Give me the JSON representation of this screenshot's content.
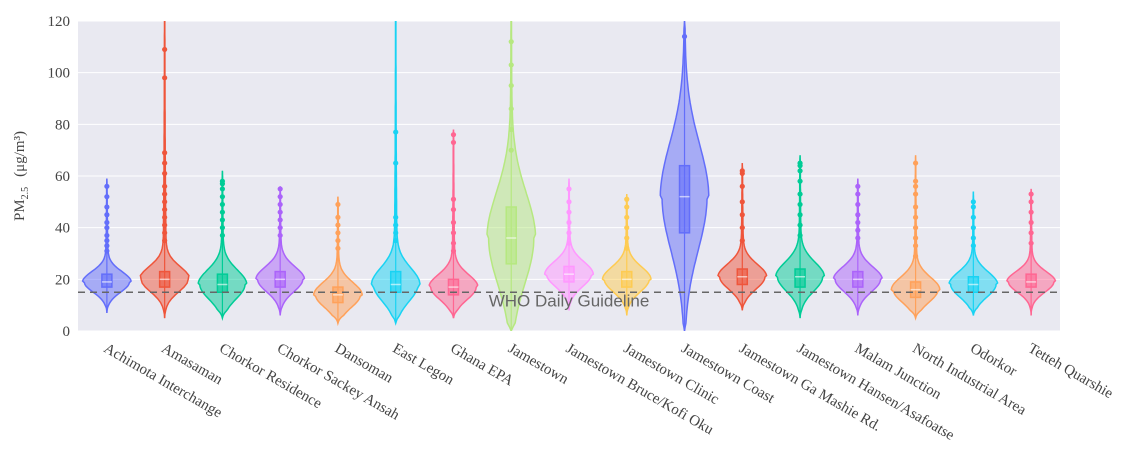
{
  "chart_data": {
    "type": "violin",
    "y_label_main": "PM",
    "y_label_sub": "2.5",
    "y_label_unit": "(μg/m³)",
    "ylim": [
      0,
      120
    ],
    "yticks": [
      0,
      20,
      40,
      60,
      80,
      100,
      120
    ],
    "grid": true,
    "hline": {
      "value": 15,
      "label": "WHO Daily Guideline"
    },
    "series": [
      {
        "name": "Achimota Interchange",
        "color": "#636efa",
        "min": 7,
        "q1": 17,
        "median": 19,
        "q3": 22,
        "max": 59,
        "outliers": [
          31,
          33,
          35,
          37,
          40,
          42,
          45,
          48,
          52,
          56
        ]
      },
      {
        "name": "Amasaman",
        "color": "#ef553b",
        "min": 5,
        "q1": 17,
        "median": 20,
        "q3": 23,
        "max": 125,
        "outliers": [
          35,
          38,
          41,
          44,
          47,
          50,
          53,
          56,
          61,
          65,
          69,
          98,
          109
        ]
      },
      {
        "name": "Chorkor Residence",
        "color": "#00cc96",
        "min": 5,
        "q1": 15,
        "median": 18,
        "q3": 22,
        "max": 62,
        "outliers": [
          37,
          40,
          43,
          46,
          49,
          52,
          55,
          57,
          58
        ]
      },
      {
        "name": "Chorkor Sackey Ansah",
        "color": "#ab63fa",
        "min": 6,
        "q1": 17,
        "median": 20,
        "q3": 23,
        "max": 56,
        "outliers": [
          37,
          40,
          43,
          46,
          49,
          52,
          55
        ]
      },
      {
        "name": "Dansoman",
        "color": "#ffa15a",
        "min": 3,
        "q1": 11,
        "median": 14,
        "q3": 17,
        "max": 52,
        "outliers": [
          32,
          35,
          38,
          41,
          44,
          49
        ]
      },
      {
        "name": "East Legon",
        "color": "#19d3f3",
        "min": 3,
        "q1": 15,
        "median": 18,
        "q3": 23,
        "max": 125,
        "outliers": [
          35,
          38,
          41,
          44,
          65,
          77
        ]
      },
      {
        "name": "Ghana EPA",
        "color": "#ff6692",
        "min": 5,
        "q1": 14,
        "median": 17,
        "q3": 20,
        "max": 78,
        "outliers": [
          31,
          34,
          38,
          42,
          47,
          51,
          73,
          76
        ]
      },
      {
        "name": "Jamestown",
        "color": "#b6e880",
        "min": 0,
        "q1": 26,
        "median": 36,
        "q3": 48,
        "max": 125,
        "outliers": [
          70,
          78,
          86,
          95,
          103,
          112
        ]
      },
      {
        "name": "Jamestown Bruce/Kofi Oku",
        "color": "#ff97ff",
        "min": 8,
        "q1": 19,
        "median": 22,
        "q3": 25,
        "max": 59,
        "outliers": [
          34,
          38,
          42,
          46,
          50,
          55
        ]
      },
      {
        "name": "Jamestown Clinic",
        "color": "#fecb52",
        "min": 6,
        "q1": 17,
        "median": 20,
        "q3": 23,
        "max": 53,
        "outliers": [
          32,
          36,
          40,
          44,
          48,
          51
        ]
      },
      {
        "name": "Jamestown Coast",
        "color": "#636efa",
        "min": 0,
        "q1": 38,
        "median": 52,
        "q3": 64,
        "max": 120,
        "outliers": [
          114
        ]
      },
      {
        "name": "Jamestown Ga Mashie Rd.",
        "color": "#ef553b",
        "min": 8,
        "q1": 18,
        "median": 21,
        "q3": 24,
        "max": 65,
        "outliers": [
          35,
          40,
          45,
          50,
          56,
          61,
          62
        ]
      },
      {
        "name": "Jamestown Hansen/Asafoatse",
        "color": "#00cc96",
        "min": 5,
        "q1": 17,
        "median": 21,
        "q3": 24,
        "max": 68,
        "outliers": [
          37,
          41,
          45,
          49,
          53,
          58,
          62,
          64,
          65
        ]
      },
      {
        "name": "Malam Junction",
        "color": "#ab63fa",
        "min": 6,
        "q1": 17,
        "median": 20,
        "q3": 23,
        "max": 59,
        "outliers": [
          36,
          39,
          42,
          45,
          49,
          53,
          56
        ]
      },
      {
        "name": "North Industrial Area",
        "color": "#ffa15a",
        "min": 5,
        "q1": 13,
        "median": 16,
        "q3": 19,
        "max": 68,
        "outliers": [
          29,
          33,
          36,
          40,
          44,
          48,
          53,
          56,
          58,
          65
        ]
      },
      {
        "name": "Odorkor",
        "color": "#19d3f3",
        "min": 6,
        "q1": 15,
        "median": 18,
        "q3": 21,
        "max": 54,
        "outliers": [
          33,
          36,
          40,
          44,
          48,
          50
        ]
      },
      {
        "name": "Tetteh Quarshie",
        "color": "#ff6692",
        "min": 6,
        "q1": 17,
        "median": 19,
        "q3": 22,
        "max": 55,
        "outliers": [
          34,
          38,
          42,
          46,
          50,
          53
        ]
      }
    ]
  }
}
